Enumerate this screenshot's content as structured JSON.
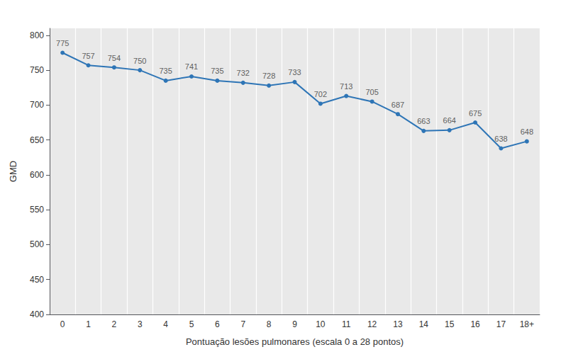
{
  "chart_data": {
    "type": "line",
    "xlabel": "Pontuação lesões pulmonares (escala 0 a 28 pontos)",
    "ylabel": "GMD",
    "categories": [
      "0",
      "1",
      "2",
      "3",
      "4",
      "5",
      "6",
      "7",
      "8",
      "9",
      "10",
      "11",
      "12",
      "13",
      "14",
      "15",
      "16",
      "17",
      "18+"
    ],
    "values": [
      775,
      757,
      754,
      750,
      735,
      741,
      735,
      732,
      728,
      733,
      702,
      713,
      705,
      687,
      663,
      664,
      675,
      638,
      648
    ],
    "color": "#2E75B6",
    "marker": "circle",
    "ylim": [
      400,
      810
    ],
    "yticks": [
      400,
      450,
      500,
      550,
      600,
      650,
      700,
      750,
      800
    ],
    "grid": true,
    "data_labels": true
  }
}
